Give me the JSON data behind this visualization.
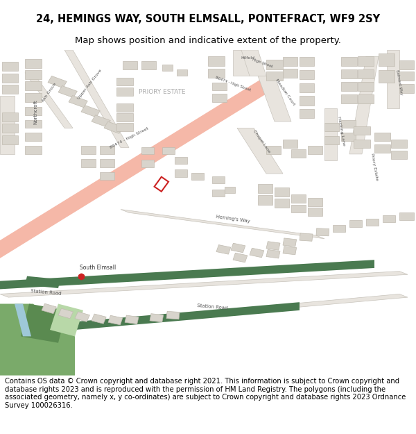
{
  "title_line1": "24, HEMINGS WAY, SOUTH ELMSALL, PONTEFRACT, WF9 2SY",
  "title_line2": "Map shows position and indicative extent of the property.",
  "footer_text": "Contains OS data © Crown copyright and database right 2021. This information is subject to Crown copyright and database rights 2023 and is reproduced with the permission of HM Land Registry. The polygons (including the associated geometry, namely x, y co-ordinates) are subject to Crown copyright and database rights 2023 Ordnance Survey 100026316.",
  "bg_color": "#ffffff",
  "map_bg": "#f5f5f5",
  "title_fontsize": 10.5,
  "subtitle_fontsize": 9.5,
  "footer_fontsize": 7.2,
  "road_color_main": "#f5b8a8",
  "road_color_green": "#4a7a50",
  "building_color": "#d8d4cc",
  "building_outline": "#c0bbb0",
  "plot_color": "#ffffff",
  "plot_outline": "#cc2222",
  "water_color": "#9ec8d8",
  "green_area": "#7aaa6a",
  "green_area2": "#5a8a50",
  "text_color": "#000000",
  "label_color": "#555555",
  "road_label_color": "#444444"
}
